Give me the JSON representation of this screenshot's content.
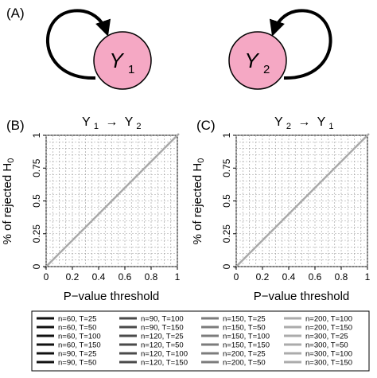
{
  "panels": {
    "a": {
      "label": "(A)",
      "node1": "Y",
      "node1_sub": "1",
      "node2": "Y",
      "node2_sub": "2",
      "node_fill": "#f5a8c4"
    },
    "b": {
      "label": "(B)",
      "title_main": "Y",
      "title_sub1": "1",
      "title_arrow": "→",
      "title_y": "Y",
      "title_sub2": "2"
    },
    "c": {
      "label": "(C)",
      "title_main": "Y",
      "title_sub1": "2",
      "title_arrow": "→",
      "title_y": "Y",
      "title_sub2": "1"
    }
  },
  "axes": {
    "xlabel": "P−value threshold",
    "ylabel_main": "% of rejected H",
    "ylabel_sub": "0",
    "xticks": [
      "0",
      "0.2",
      "0.4",
      "0.6",
      "0.8",
      "1"
    ],
    "yticks": [
      "0",
      "0.25",
      "0.5",
      "0.75",
      "1"
    ]
  },
  "chart_data": [
    {
      "type": "line",
      "panel": "B",
      "xlabel": "P−value threshold",
      "ylabel": "% of rejected H0",
      "xlim": [
        0,
        1
      ],
      "ylim": [
        0,
        1
      ],
      "grid": true,
      "series_pattern": "all 24 curves lie on the diagonal y = x",
      "x": [
        0,
        0.2,
        0.4,
        0.6,
        0.8,
        1
      ],
      "y": [
        0,
        0.2,
        0.4,
        0.6,
        0.8,
        1
      ]
    },
    {
      "type": "line",
      "panel": "C",
      "xlabel": "P−value threshold",
      "ylabel": "% of rejected H0",
      "xlim": [
        0,
        1
      ],
      "ylim": [
        0,
        1
      ],
      "grid": true,
      "series_pattern": "all 24 curves lie on the diagonal y = x",
      "x": [
        0,
        0.2,
        0.4,
        0.6,
        0.8,
        1
      ],
      "y": [
        0,
        0.2,
        0.4,
        0.6,
        0.8,
        1
      ]
    }
  ],
  "legend": {
    "placement": "bottom",
    "items": [
      {
        "label": "n=60, T=25",
        "color": "#111111"
      },
      {
        "label": "n=60, T=50",
        "color": "#111111"
      },
      {
        "label": "n=60, T=100",
        "color": "#111111"
      },
      {
        "label": "n=60, T=150",
        "color": "#111111"
      },
      {
        "label": "n=90, T=25",
        "color": "#111111"
      },
      {
        "label": "n=90, T=50",
        "color": "#111111"
      },
      {
        "label": "n=90, T=100",
        "color": "#4a4a4a"
      },
      {
        "label": "n=90, T=150",
        "color": "#4a4a4a"
      },
      {
        "label": "n=120, T=25",
        "color": "#4a4a4a"
      },
      {
        "label": "n=120, T=50",
        "color": "#4a4a4a"
      },
      {
        "label": "n=120, T=100",
        "color": "#4a4a4a"
      },
      {
        "label": "n=120, T=150",
        "color": "#4a4a4a"
      },
      {
        "label": "n=150, T=25",
        "color": "#7c7c7c"
      },
      {
        "label": "n=150, T=50",
        "color": "#7c7c7c"
      },
      {
        "label": "n=150, T=100",
        "color": "#7c7c7c"
      },
      {
        "label": "n=150, T=150",
        "color": "#7c7c7c"
      },
      {
        "label": "n=200, T=25",
        "color": "#7c7c7c"
      },
      {
        "label": "n=200, T=50",
        "color": "#7c7c7c"
      },
      {
        "label": "n=200, T=100",
        "color": "#ababab"
      },
      {
        "label": "n=200, T=150",
        "color": "#ababab"
      },
      {
        "label": "n=300, T=25",
        "color": "#ababab"
      },
      {
        "label": "n=300, T=50",
        "color": "#ababab"
      },
      {
        "label": "n=300, T=100",
        "color": "#ababab"
      },
      {
        "label": "n=300, T=150",
        "color": "#ababab"
      }
    ]
  }
}
